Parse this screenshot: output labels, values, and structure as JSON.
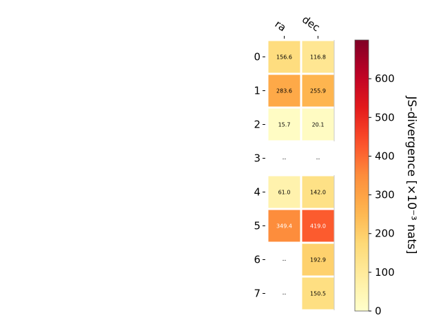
{
  "chart_data": {
    "type": "heatmap",
    "columns": [
      "ra",
      "dec"
    ],
    "rows": [
      "0",
      "1",
      "2",
      "3",
      "4",
      "5",
      "6",
      "7"
    ],
    "values": [
      [
        156.6,
        116.8
      ],
      [
        283.6,
        255.9
      ],
      [
        15.7,
        20.1
      ],
      [
        null,
        null
      ],
      [
        61.0,
        142.0
      ],
      [
        349.4,
        419.0
      ],
      [
        null,
        192.9
      ],
      [
        null,
        150.5
      ]
    ],
    "missing_label": "--",
    "colorbar": {
      "label": "JS-divergence [×10⁻³ nats]",
      "range": [
        0,
        700
      ],
      "ticks": [
        0,
        100,
        200,
        300,
        400,
        500,
        600
      ],
      "colormap": "YlOrRd"
    }
  }
}
